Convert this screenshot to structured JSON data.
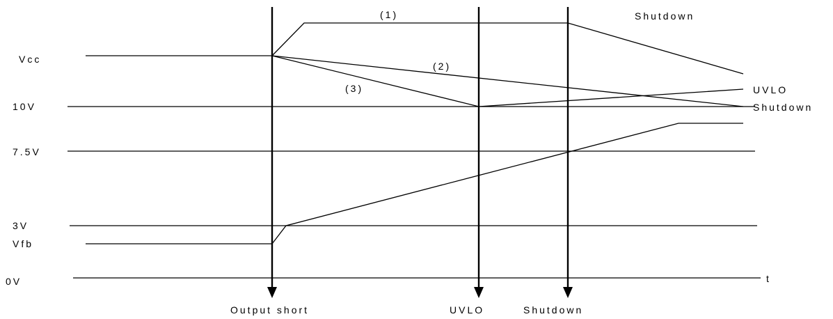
{
  "levels": {
    "vcc": "Vcc",
    "v10": "10V",
    "v7_5": "7.5V",
    "v3": "3V",
    "vfb": "Vfb",
    "v0": "0V"
  },
  "events": {
    "output_short": "Output short",
    "uvlo": "UVLO",
    "shutdown": "Shutdown"
  },
  "curves": {
    "c1": "(1)",
    "c2": "(2)",
    "c3": "(3)"
  },
  "annotations": {
    "top_shutdown": "Shutdown",
    "right_uvlo": "UVLO",
    "right_shutdown": "Shutdown",
    "time_axis": "t"
  }
}
